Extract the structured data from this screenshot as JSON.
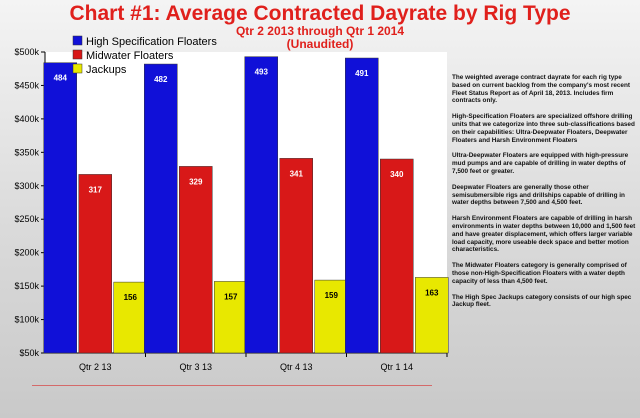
{
  "header": {
    "title": "Chart #1: Average Contracted Dayrate by Rig Type",
    "subtitle_line1": "Qtr 2 2013 through Qtr 1 2014",
    "subtitle_line2": "(Unaudited)"
  },
  "colors": {
    "title": "#e0201c",
    "series": [
      "#1010d8",
      "#d81818",
      "#e8e800"
    ]
  },
  "chart_data": {
    "type": "bar",
    "title": "Chart #1: Average Contracted Dayrate by Rig Type",
    "subtitle": "Qtr 2 2013 through Qtr 1 2014 (Unaudited)",
    "categories": [
      "Qtr 2 13",
      "Qtr 3 13",
      "Qtr 4 13",
      "Qtr 1 14"
    ],
    "series": [
      {
        "name": "High Specification Floaters",
        "values": [
          484,
          482,
          493,
          491
        ],
        "labels": [
          "484",
          "482",
          "493",
          "491"
        ]
      },
      {
        "name": "Midwater Floaters",
        "values": [
          317,
          329,
          341,
          340
        ],
        "labels": [
          "317",
          "329",
          "341",
          "340"
        ]
      },
      {
        "name": "Jackups",
        "values": [
          156,
          157,
          159,
          163
        ],
        "labels": [
          "156",
          "157",
          "159",
          "163"
        ]
      }
    ],
    "ylim": [
      50,
      500
    ],
    "yticks": [
      50,
      100,
      150,
      200,
      250,
      300,
      350,
      400,
      450,
      500
    ],
    "ytick_labels": [
      "$50k",
      "$100k",
      "$150k",
      "$200k",
      "$250k",
      "$300k",
      "$350k",
      "$400k",
      "$450k",
      "$500k"
    ],
    "xlabel": "",
    "ylabel": "",
    "legend_position": "top-left",
    "grid": false
  },
  "notes": [
    "The weighted average contract dayrate for each rig type based on current backlog from the company's most recent Fleet Status Report as of April 18, 2013. Includes firm contracts only.",
    "High-Specification Floaters are specialized offshore drilling units that we categorize into three sub-classifications based on their capabilities: Ultra-Deepwater Floaters, Deepwater Floaters and Harsh Environment Floaters",
    "Ultra-Deepwater Floaters are equipped with high-pressure mud pumps and are capable of drilling in water depths of 7,500 feet or greater.",
    "Deepwater Floaters are generally those other semisubmersible rigs and drillships capable of drilling in water depths between 7,500 and 4,500 feet.",
    "Harsh Environment Floaters are capable of drilling in harsh environments in water depths between 10,000 and 1,500 feet and have greater displacement, which offers larger variable load capacity, more useable deck space and better motion characteristics.",
    "The Midwater Floaters category is generally comprised of those non-High-Specification Floaters with a water depth capacity of less than 4,500 feet.",
    "The High Spec Jackups category consists of our high spec Jackup fleet."
  ]
}
